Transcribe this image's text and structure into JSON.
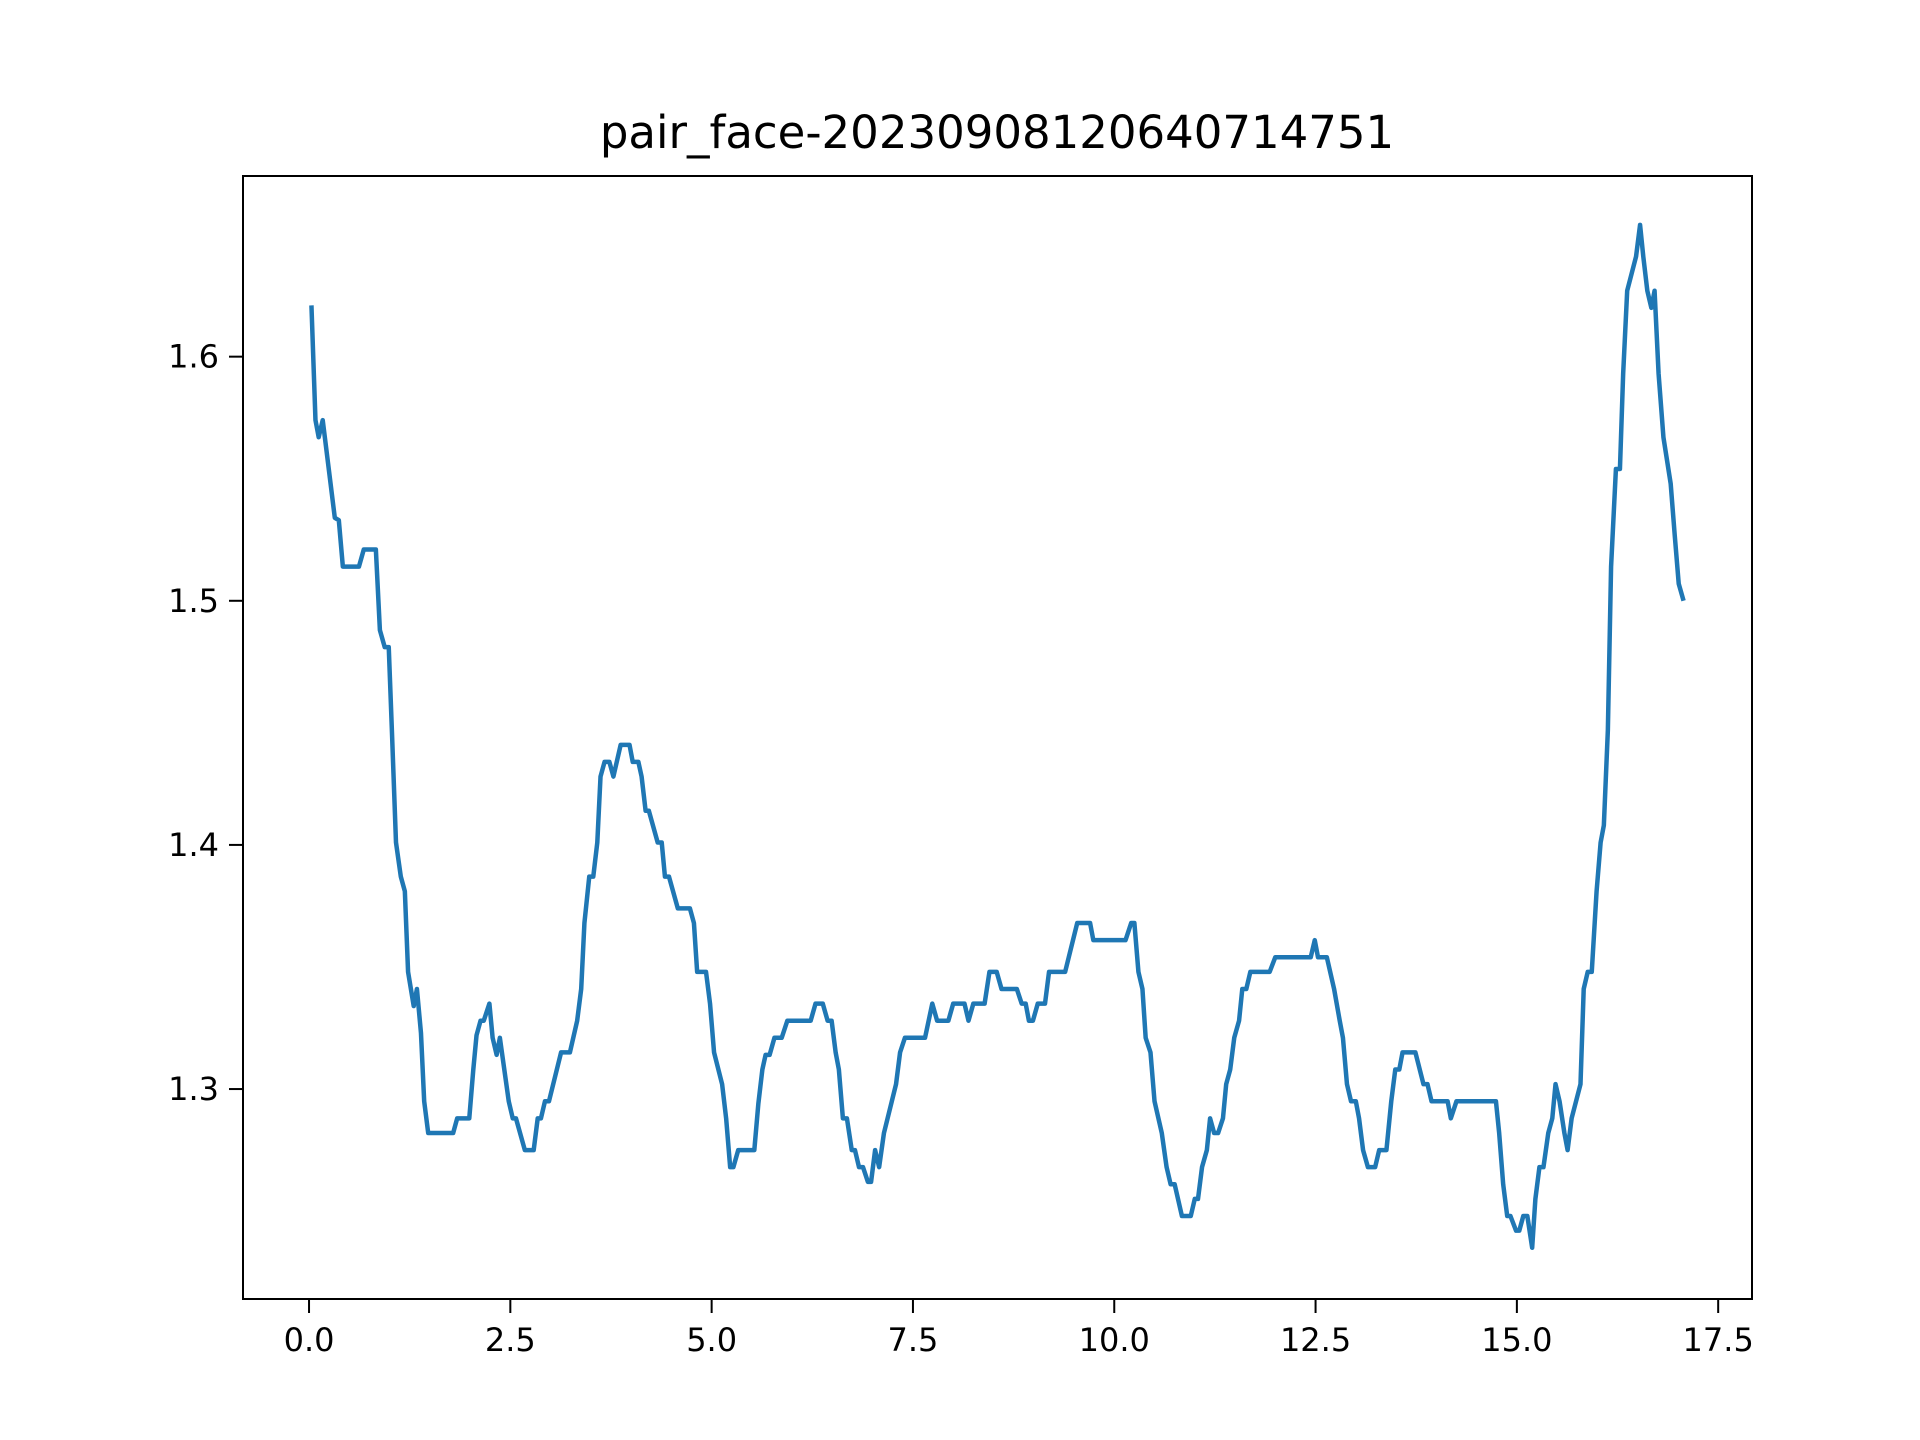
{
  "chart_data": {
    "type": "line",
    "title": "pair_face-20230908120640714751",
    "color": "#1f77b4",
    "xlim": [
      -0.82,
      17.92
    ],
    "ylim": [
      1.214,
      1.674
    ],
    "xticks": [
      {
        "value": 0,
        "label": "0.0"
      },
      2.5,
      {
        "value": 5,
        "label": "5.0"
      },
      7.5,
      {
        "value": 10,
        "label": "10.0"
      },
      12.5,
      {
        "value": 15,
        "label": "15.0"
      },
      17.5
    ],
    "yticks": [
      1.3,
      1.4,
      1.5,
      1.6
    ],
    "x": [
      0.03,
      0.08,
      0.12,
      0.17,
      0.32,
      0.37,
      0.42,
      0.62,
      0.68,
      0.83,
      0.88,
      0.94,
      0.99,
      1.03,
      1.08,
      1.14,
      1.19,
      1.23,
      1.3,
      1.34,
      1.39,
      1.43,
      1.48,
      1.79,
      1.84,
      1.99,
      2.04,
      2.08,
      2.13,
      2.17,
      2.24,
      2.28,
      2.33,
      2.37,
      2.48,
      2.53,
      2.57,
      2.68,
      2.79,
      2.84,
      2.88,
      2.93,
      2.98,
      3.13,
      3.24,
      3.33,
      3.38,
      3.42,
      3.48,
      3.53,
      3.58,
      3.62,
      3.67,
      3.73,
      3.78,
      3.87,
      3.98,
      4.02,
      4.09,
      4.13,
      4.18,
      4.22,
      4.33,
      4.38,
      4.42,
      4.47,
      4.58,
      4.73,
      4.78,
      4.82,
      4.93,
      4.98,
      5.03,
      5.13,
      5.18,
      5.23,
      5.27,
      5.33,
      5.53,
      5.58,
      5.63,
      5.67,
      5.72,
      5.78,
      5.87,
      5.94,
      6.23,
      6.29,
      6.38,
      6.44,
      6.49,
      6.54,
      6.58,
      6.63,
      6.68,
      6.74,
      6.78,
      6.83,
      6.88,
      6.94,
      6.98,
      7.03,
      7.08,
      7.14,
      7.29,
      7.34,
      7.4,
      7.65,
      7.74,
      7.8,
      7.94,
      8.0,
      8.14,
      8.19,
      8.25,
      8.39,
      8.45,
      8.54,
      8.6,
      8.79,
      8.85,
      8.9,
      8.94,
      8.99,
      9.05,
      9.14,
      9.19,
      9.39,
      9.54,
      9.7,
      9.74,
      10.14,
      10.21,
      10.25,
      10.3,
      10.35,
      10.39,
      10.45,
      10.5,
      10.59,
      10.65,
      10.7,
      10.75,
      10.84,
      10.95,
      11.0,
      11.04,
      11.09,
      11.15,
      11.19,
      11.24,
      11.29,
      11.35,
      11.39,
      11.44,
      11.49,
      11.55,
      11.59,
      11.64,
      11.69,
      11.93,
      12.0,
      12.44,
      12.49,
      12.53,
      12.64,
      12.73,
      12.8,
      12.84,
      12.89,
      12.94,
      13.0,
      13.04,
      13.09,
      13.15,
      13.24,
      13.29,
      13.38,
      13.44,
      13.49,
      13.54,
      13.58,
      13.74,
      13.84,
      13.89,
      13.94,
      14.14,
      14.18,
      14.25,
      14.74,
      14.78,
      14.83,
      14.88,
      14.92,
      14.99,
      15.03,
      15.08,
      15.13,
      15.19,
      15.23,
      15.28,
      15.33,
      15.39,
      15.44,
      15.48,
      15.53,
      15.59,
      15.63,
      15.68,
      15.79,
      15.83,
      15.88,
      15.93,
      15.99,
      16.04,
      16.08,
      16.13,
      16.17,
      16.23,
      16.28,
      16.32,
      16.37,
      16.48,
      16.53,
      16.57,
      16.62,
      16.67,
      16.71,
      16.76,
      16.82,
      16.91,
      16.96,
      17.01,
      17.07
    ],
    "values": [
      1.621,
      1.574,
      1.567,
      1.574,
      1.534,
      1.533,
      1.514,
      1.514,
      1.521,
      1.521,
      1.488,
      1.481,
      1.481,
      1.446,
      1.401,
      1.387,
      1.381,
      1.348,
      1.334,
      1.341,
      1.323,
      1.295,
      1.282,
      1.282,
      1.288,
      1.288,
      1.308,
      1.322,
      1.328,
      1.328,
      1.335,
      1.321,
      1.314,
      1.321,
      1.295,
      1.288,
      1.288,
      1.275,
      1.275,
      1.288,
      1.288,
      1.295,
      1.295,
      1.315,
      1.315,
      1.328,
      1.341,
      1.368,
      1.387,
      1.387,
      1.401,
      1.428,
      1.434,
      1.434,
      1.428,
      1.441,
      1.441,
      1.434,
      1.434,
      1.428,
      1.414,
      1.414,
      1.401,
      1.401,
      1.387,
      1.387,
      1.374,
      1.374,
      1.368,
      1.348,
      1.348,
      1.335,
      1.315,
      1.302,
      1.288,
      1.268,
      1.268,
      1.275,
      1.275,
      1.294,
      1.308,
      1.314,
      1.314,
      1.321,
      1.321,
      1.328,
      1.328,
      1.335,
      1.335,
      1.328,
      1.328,
      1.315,
      1.308,
      1.288,
      1.288,
      1.275,
      1.275,
      1.268,
      1.268,
      1.262,
      1.262,
      1.275,
      1.268,
      1.282,
      1.302,
      1.315,
      1.321,
      1.321,
      1.335,
      1.328,
      1.328,
      1.335,
      1.335,
      1.328,
      1.335,
      1.335,
      1.348,
      1.348,
      1.341,
      1.341,
      1.335,
      1.335,
      1.328,
      1.328,
      1.335,
      1.335,
      1.348,
      1.348,
      1.368,
      1.368,
      1.361,
      1.361,
      1.368,
      1.368,
      1.348,
      1.341,
      1.321,
      1.315,
      1.295,
      1.282,
      1.268,
      1.261,
      1.261,
      1.248,
      1.248,
      1.255,
      1.255,
      1.268,
      1.275,
      1.288,
      1.282,
      1.282,
      1.288,
      1.302,
      1.308,
      1.321,
      1.328,
      1.341,
      1.341,
      1.348,
      1.348,
      1.354,
      1.354,
      1.361,
      1.354,
      1.354,
      1.341,
      1.328,
      1.321,
      1.302,
      1.295,
      1.295,
      1.288,
      1.275,
      1.268,
      1.268,
      1.275,
      1.275,
      1.295,
      1.308,
      1.308,
      1.315,
      1.315,
      1.302,
      1.302,
      1.295,
      1.295,
      1.288,
      1.295,
      1.295,
      1.282,
      1.261,
      1.248,
      1.248,
      1.242,
      1.242,
      1.248,
      1.248,
      1.235,
      1.255,
      1.268,
      1.268,
      1.282,
      1.288,
      1.302,
      1.295,
      1.282,
      1.275,
      1.288,
      1.302,
      1.341,
      1.348,
      1.348,
      1.381,
      1.401,
      1.408,
      1.447,
      1.514,
      1.554,
      1.554,
      1.593,
      1.627,
      1.641,
      1.654,
      1.641,
      1.627,
      1.62,
      1.627,
      1.593,
      1.567,
      1.548,
      1.527,
      1.507,
      1.5
    ]
  }
}
